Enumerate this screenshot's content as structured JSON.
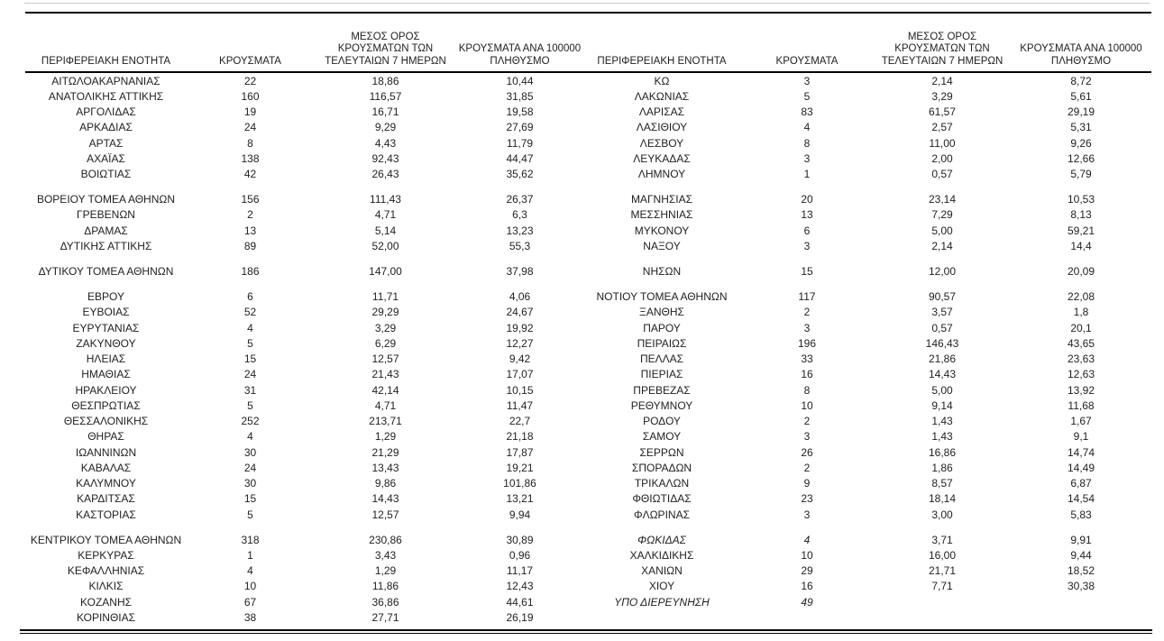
{
  "headers": {
    "region": "ΠΕΡΙΦΕΡΕΙΑΚΗ ΕΝΟΤΗΤΑ",
    "cases": "ΚΡΟΥΣΜΑΤΑ",
    "avg7": "ΜΕΣΟΣ ΟΡΟΣ\nΚΡΟΥΣΜΑΤΩΝ ΤΩΝ\nΤΕΛΕΥΤΑΙΩΝ 7 ΗΜΕΡΩΝ",
    "per100k": "ΚΡΟΥΣΜΑΤΑ ΑΝΑ 100000\nΠΛΗΘΥΣΜΟ"
  },
  "colors": {
    "text": "#1f1f1f",
    "rule_dark": "#000000",
    "rule_light": "#c9c9c9"
  },
  "rows": [
    {
      "t": "d",
      "l": [
        "ΑΙΤΩΛΟΑΚΑΡΝΑΝΙΑΣ",
        "22",
        "18,86",
        "10,44"
      ],
      "r": [
        "ΚΩ",
        "3",
        "2,14",
        "8,72"
      ]
    },
    {
      "t": "d",
      "l": [
        "ΑΝΑΤΟΛΙΚΗΣ ΑΤΤΙΚΗΣ",
        "160",
        "116,57",
        "31,85"
      ],
      "r": [
        "ΛΑΚΩΝΙΑΣ",
        "5",
        "3,29",
        "5,61"
      ]
    },
    {
      "t": "d",
      "l": [
        "ΑΡΓΟΛΙΔΑΣ",
        "19",
        "16,71",
        "19,58"
      ],
      "r": [
        "ΛΑΡΙΣΑΣ",
        "83",
        "61,57",
        "29,19"
      ]
    },
    {
      "t": "d",
      "l": [
        "ΑΡΚΑΔΙΑΣ",
        "24",
        "9,29",
        "27,69"
      ],
      "r": [
        "ΛΑΣΙΘΙΟΥ",
        "4",
        "2,57",
        "5,31"
      ]
    },
    {
      "t": "d",
      "l": [
        "ΑΡΤΑΣ",
        "8",
        "4,43",
        "11,79"
      ],
      "r": [
        "ΛΕΣΒΟΥ",
        "8",
        "11,00",
        "9,26"
      ]
    },
    {
      "t": "d",
      "l": [
        "ΑΧΑΪΑΣ",
        "138",
        "92,43",
        "44,47"
      ],
      "r": [
        "ΛΕΥΚΑΔΑΣ",
        "3",
        "2,00",
        "12,66"
      ]
    },
    {
      "t": "d",
      "l": [
        "ΒΟΙΩΤΙΑΣ",
        "42",
        "26,43",
        "35,62"
      ],
      "r": [
        "ΛΗΜΝΟΥ",
        "1",
        "0,57",
        "5,79"
      ]
    },
    {
      "t": "s"
    },
    {
      "t": "d",
      "l": [
        "ΒΟΡΕΙΟΥ ΤΟΜΕΑ ΑΘΗΝΩΝ",
        "156",
        "111,43",
        "26,37"
      ],
      "r": [
        "ΜΑΓΝΗΣΙΑΣ",
        "20",
        "23,14",
        "10,53"
      ]
    },
    {
      "t": "d",
      "l": [
        "ΓΡΕΒΕΝΩΝ",
        "2",
        "4,71",
        "6,3"
      ],
      "r": [
        "ΜΕΣΣΗΝΙΑΣ",
        "13",
        "7,29",
        "8,13"
      ]
    },
    {
      "t": "d",
      "l": [
        "ΔΡΑΜΑΣ",
        "13",
        "5,14",
        "13,23"
      ],
      "r": [
        "ΜΥΚΟΝΟΥ",
        "6",
        "5,00",
        "59,21"
      ]
    },
    {
      "t": "d",
      "l": [
        "ΔΥΤΙΚΗΣ ΑΤΤΙΚΗΣ",
        "89",
        "52,00",
        "55,3"
      ],
      "r": [
        "ΝΑΞΟΥ",
        "3",
        "2,14",
        "14,4"
      ]
    },
    {
      "t": "s"
    },
    {
      "t": "d",
      "l": [
        "ΔΥΤΙΚΟΥ ΤΟΜΕΑ ΑΘΗΝΩΝ",
        "186",
        "147,00",
        "37,98"
      ],
      "r": [
        "ΝΗΣΩΝ",
        "15",
        "12,00",
        "20,09"
      ]
    },
    {
      "t": "s"
    },
    {
      "t": "d",
      "l": [
        "ΕΒΡΟΥ",
        "6",
        "11,71",
        "4,06"
      ],
      "r": [
        "ΝΟΤΙΟΥ ΤΟΜΕΑ ΑΘΗΝΩΝ",
        "117",
        "90,57",
        "22,08"
      ]
    },
    {
      "t": "d",
      "l": [
        "ΕΥΒΟΙΑΣ",
        "52",
        "29,29",
        "24,67"
      ],
      "r": [
        "ΞΑΝΘΗΣ",
        "2",
        "3,57",
        "1,8"
      ]
    },
    {
      "t": "d",
      "l": [
        "ΕΥΡΥΤΑΝΙΑΣ",
        "4",
        "3,29",
        "19,92"
      ],
      "r": [
        "ΠΑΡΟΥ",
        "3",
        "0,57",
        "20,1"
      ]
    },
    {
      "t": "d",
      "l": [
        "ΖΑΚΥΝΘΟΥ",
        "5",
        "6,29",
        "12,27"
      ],
      "r": [
        "ΠΕΙΡΑΙΩΣ",
        "196",
        "146,43",
        "43,65"
      ]
    },
    {
      "t": "d",
      "l": [
        "ΗΛΕΙΑΣ",
        "15",
        "12,57",
        "9,42"
      ],
      "r": [
        "ΠΕΛΛΑΣ",
        "33",
        "21,86",
        "23,63"
      ]
    },
    {
      "t": "d",
      "l": [
        "ΗΜΑΘΙΑΣ",
        "24",
        "21,43",
        "17,07"
      ],
      "r": [
        "ΠΙΕΡΙΑΣ",
        "16",
        "14,43",
        "12,63"
      ]
    },
    {
      "t": "d",
      "l": [
        "ΗΡΑΚΛΕΙΟΥ",
        "31",
        "42,14",
        "10,15"
      ],
      "r": [
        "ΠΡΕΒΕΖΑΣ",
        "8",
        "5,00",
        "13,92"
      ]
    },
    {
      "t": "d",
      "l": [
        "ΘΕΣΠΡΩΤΙΑΣ",
        "5",
        "4,71",
        "11,47"
      ],
      "r": [
        "ΡΕΘΥΜΝΟΥ",
        "10",
        "9,14",
        "11,68"
      ]
    },
    {
      "t": "d",
      "l": [
        "ΘΕΣΣΑΛΟΝΙΚΗΣ",
        "252",
        "213,71",
        "22,7"
      ],
      "r": [
        "ΡΟΔΟΥ",
        "2",
        "1,43",
        "1,67"
      ]
    },
    {
      "t": "d",
      "l": [
        "ΘΗΡΑΣ",
        "4",
        "1,29",
        "21,18"
      ],
      "r": [
        "ΣΑΜΟΥ",
        "3",
        "1,43",
        "9,1"
      ]
    },
    {
      "t": "d",
      "l": [
        "ΙΩΑΝΝΙΝΩΝ",
        "30",
        "21,29",
        "17,87"
      ],
      "r": [
        "ΣΕΡΡΩΝ",
        "26",
        "16,86",
        "14,74"
      ]
    },
    {
      "t": "d",
      "l": [
        "ΚΑΒΑΛΑΣ",
        "24",
        "13,43",
        "19,21"
      ],
      "r": [
        "ΣΠΟΡΑΔΩΝ",
        "2",
        "1,86",
        "14,49"
      ]
    },
    {
      "t": "d",
      "l": [
        "ΚΑΛΥΜΝΟΥ",
        "30",
        "9,86",
        "101,86"
      ],
      "r": [
        "ΤΡΙΚΑΛΩΝ",
        "9",
        "8,57",
        "6,87"
      ]
    },
    {
      "t": "d",
      "l": [
        "ΚΑΡΔΙΤΣΑΣ",
        "15",
        "14,43",
        "13,21"
      ],
      "r": [
        "ΦΘΙΩΤΙΔΑΣ",
        "23",
        "18,14",
        "14,54"
      ]
    },
    {
      "t": "d",
      "l": [
        "ΚΑΣΤΟΡΙΑΣ",
        "5",
        "12,57",
        "9,94"
      ],
      "r": [
        "ΦΛΩΡΙΝΑΣ",
        "3",
        "3,00",
        "5,83"
      ]
    },
    {
      "t": "s"
    },
    {
      "t": "d",
      "l": [
        "ΚΕΝΤΡΙΚΟΥ ΤΟΜΕΑ ΑΘΗΝΩΝ",
        "318",
        "230,86",
        "30,89"
      ],
      "r": [
        "ΦΩΚΙΔΑΣ",
        "4",
        "3,71",
        "9,91"
      ],
      "ri": true
    },
    {
      "t": "d",
      "l": [
        "ΚΕΡΚΥΡΑΣ",
        "1",
        "3,43",
        "0,96"
      ],
      "r": [
        "ΧΑΛΚΙΔΙΚΗΣ",
        "10",
        "16,00",
        "9,44"
      ]
    },
    {
      "t": "d",
      "l": [
        "ΚΕΦΑΛΛΗΝΙΑΣ",
        "4",
        "1,29",
        "11,17"
      ],
      "r": [
        "ΧΑΝΙΩΝ",
        "29",
        "21,71",
        "18,52"
      ]
    },
    {
      "t": "d",
      "l": [
        "ΚΙΛΚΙΣ",
        "10",
        "11,86",
        "12,43"
      ],
      "r": [
        "ΧΙΟΥ",
        "16",
        "7,71",
        "30,38"
      ]
    },
    {
      "t": "d",
      "l": [
        "ΚΟΖΑΝΗΣ",
        "67",
        "36,86",
        "44,61"
      ],
      "r": [
        "ΥΠΟ ΔΙΕΡΕΥΝΗΣΗ",
        "49",
        "",
        ""
      ],
      "ri": true
    },
    {
      "t": "d",
      "l": [
        "ΚΟΡΙΝΘΙΑΣ",
        "38",
        "27,71",
        "26,19"
      ],
      "r": [
        "",
        "",
        "",
        ""
      ]
    }
  ]
}
